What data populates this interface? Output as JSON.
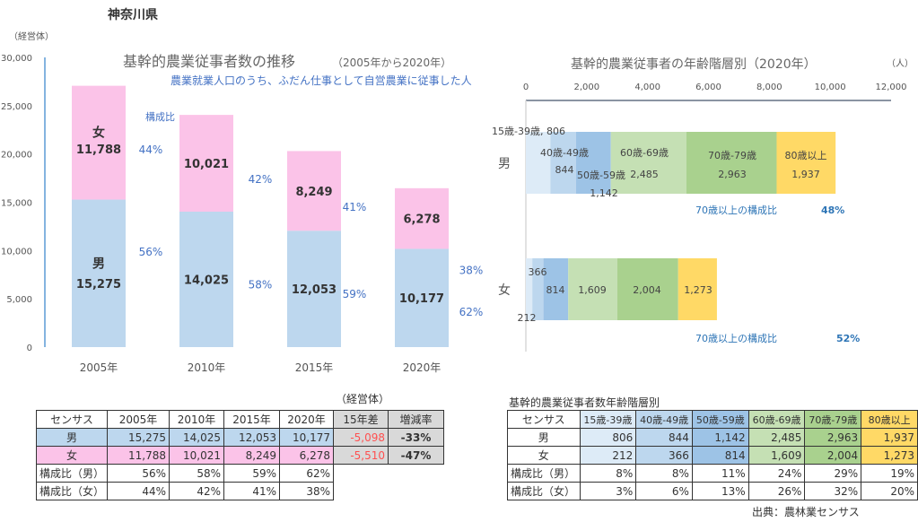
{
  "region": "神奈川県",
  "chart_data": [
    {
      "type": "bar",
      "stacked": true,
      "title": "基幹的農業従事者数の推移",
      "title_suffix": "（2005年から2020年）",
      "subtitle": "農業就業人口のうち、ふだん仕事として自営農業に従事した人",
      "ylabel": "（経営体）",
      "ylim": [
        0,
        30000
      ],
      "yticks": [
        "0",
        "5,000",
        "10,000",
        "15,000",
        "20,000",
        "25,000",
        "30,000"
      ],
      "categories": [
        "2005年",
        "2010年",
        "2015年",
        "2020年"
      ],
      "ratio_label": "構成比",
      "series": [
        {
          "name": "男",
          "values": [
            15275,
            14025,
            12053,
            10177
          ],
          "labels": [
            "15,275",
            "14,025",
            "12,053",
            "10,177"
          ],
          "ratio": [
            "56%",
            "58%",
            "59%",
            "62%"
          ],
          "color": "#bdd7ee"
        },
        {
          "name": "女",
          "values": [
            11788,
            10021,
            8249,
            6278
          ],
          "labels": [
            "11,788",
            "10,021",
            "8,249",
            "6,278"
          ],
          "ratio": [
            "44%",
            "42%",
            "41%",
            "38%"
          ],
          "color": "#fbc3e8"
        }
      ]
    },
    {
      "type": "bar",
      "orientation": "horizontal",
      "stacked": true,
      "title": "基幹的農業従事者の年齢階層別（2020年）",
      "unit": "（人）",
      "xlim": [
        0,
        12000
      ],
      "xticks": [
        "0",
        "2,000",
        "4,000",
        "6,000",
        "8,000",
        "10,000",
        "12,000"
      ],
      "categories": [
        "男",
        "女"
      ],
      "series": [
        {
          "name": "15歳-39歳",
          "values": [
            806,
            212
          ],
          "color": "#ddebf7"
        },
        {
          "name": "40歳-49歳",
          "values": [
            844,
            366
          ],
          "color": "#bdd7ee"
        },
        {
          "name": "50歳-59歳",
          "values": [
            1142,
            814
          ],
          "color": "#9dc3e6"
        },
        {
          "name": "60歳-69歳",
          "values": [
            2485,
            1609
          ],
          "color": "#c5e0b4"
        },
        {
          "name": "70歳-79歳",
          "values": [
            2963,
            2004
          ],
          "color": "#a9d18e"
        },
        {
          "name": "80歳以上",
          "values": [
            1937,
            1273
          ],
          "color": "#ffd966"
        }
      ],
      "male_labels": [
        "15歳-39歳, 806",
        "40歳-49歳",
        "844",
        "50歳-59歳",
        "1,142",
        "60歳-69歳",
        "2,485",
        "70歳-79歳",
        "2,963",
        "80歳以上",
        "1,937"
      ],
      "female_labels": [
        "212",
        "366",
        "814",
        "1,609",
        "2,004",
        "1,273"
      ],
      "annotation_label": "70歳以上の構成比",
      "annotation_male": "48%",
      "annotation_female": "52%"
    }
  ],
  "table1": {
    "unit": "（経営体）",
    "header": [
      "センサス",
      "2005年",
      "2010年",
      "2015年",
      "2020年",
      "15年差",
      "増減率"
    ],
    "rows": [
      [
        "男",
        "15,275",
        "14,025",
        "12,053",
        "10,177",
        "-5,098",
        "-33%"
      ],
      [
        "女",
        "11,788",
        "10,021",
        "8,249",
        "6,278",
        "-5,510",
        "-47%"
      ],
      [
        "構成比（男）",
        "56%",
        "58%",
        "59%",
        "62%"
      ],
      [
        "構成比（女）",
        "44%",
        "42%",
        "41%",
        "38%"
      ]
    ]
  },
  "table2": {
    "title": "基幹的農業従事者数年齢階層別",
    "header": [
      "センサス",
      "15歳-39歳",
      "40歳-49歳",
      "50歳-59歳",
      "60歳-69歳",
      "70歳-79歳",
      "80歳以上"
    ],
    "rows": [
      [
        "男",
        "806",
        "844",
        "1,142",
        "2,485",
        "2,963",
        "1,937"
      ],
      [
        "女",
        "212",
        "366",
        "814",
        "1,609",
        "2,004",
        "1,273"
      ],
      [
        "構成比（男）",
        "8%",
        "8%",
        "11%",
        "24%",
        "29%",
        "19%"
      ],
      [
        "構成比（女）",
        "3%",
        "6%",
        "13%",
        "26%",
        "32%",
        "20%"
      ]
    ]
  },
  "source": "出典：農林業センサス",
  "colors": {
    "male": "#bdd7ee",
    "female": "#fbc3e8",
    "accent_text": "#4472c4",
    "negative": "#ff5050",
    "gray_cell": "#d9d9d9"
  }
}
